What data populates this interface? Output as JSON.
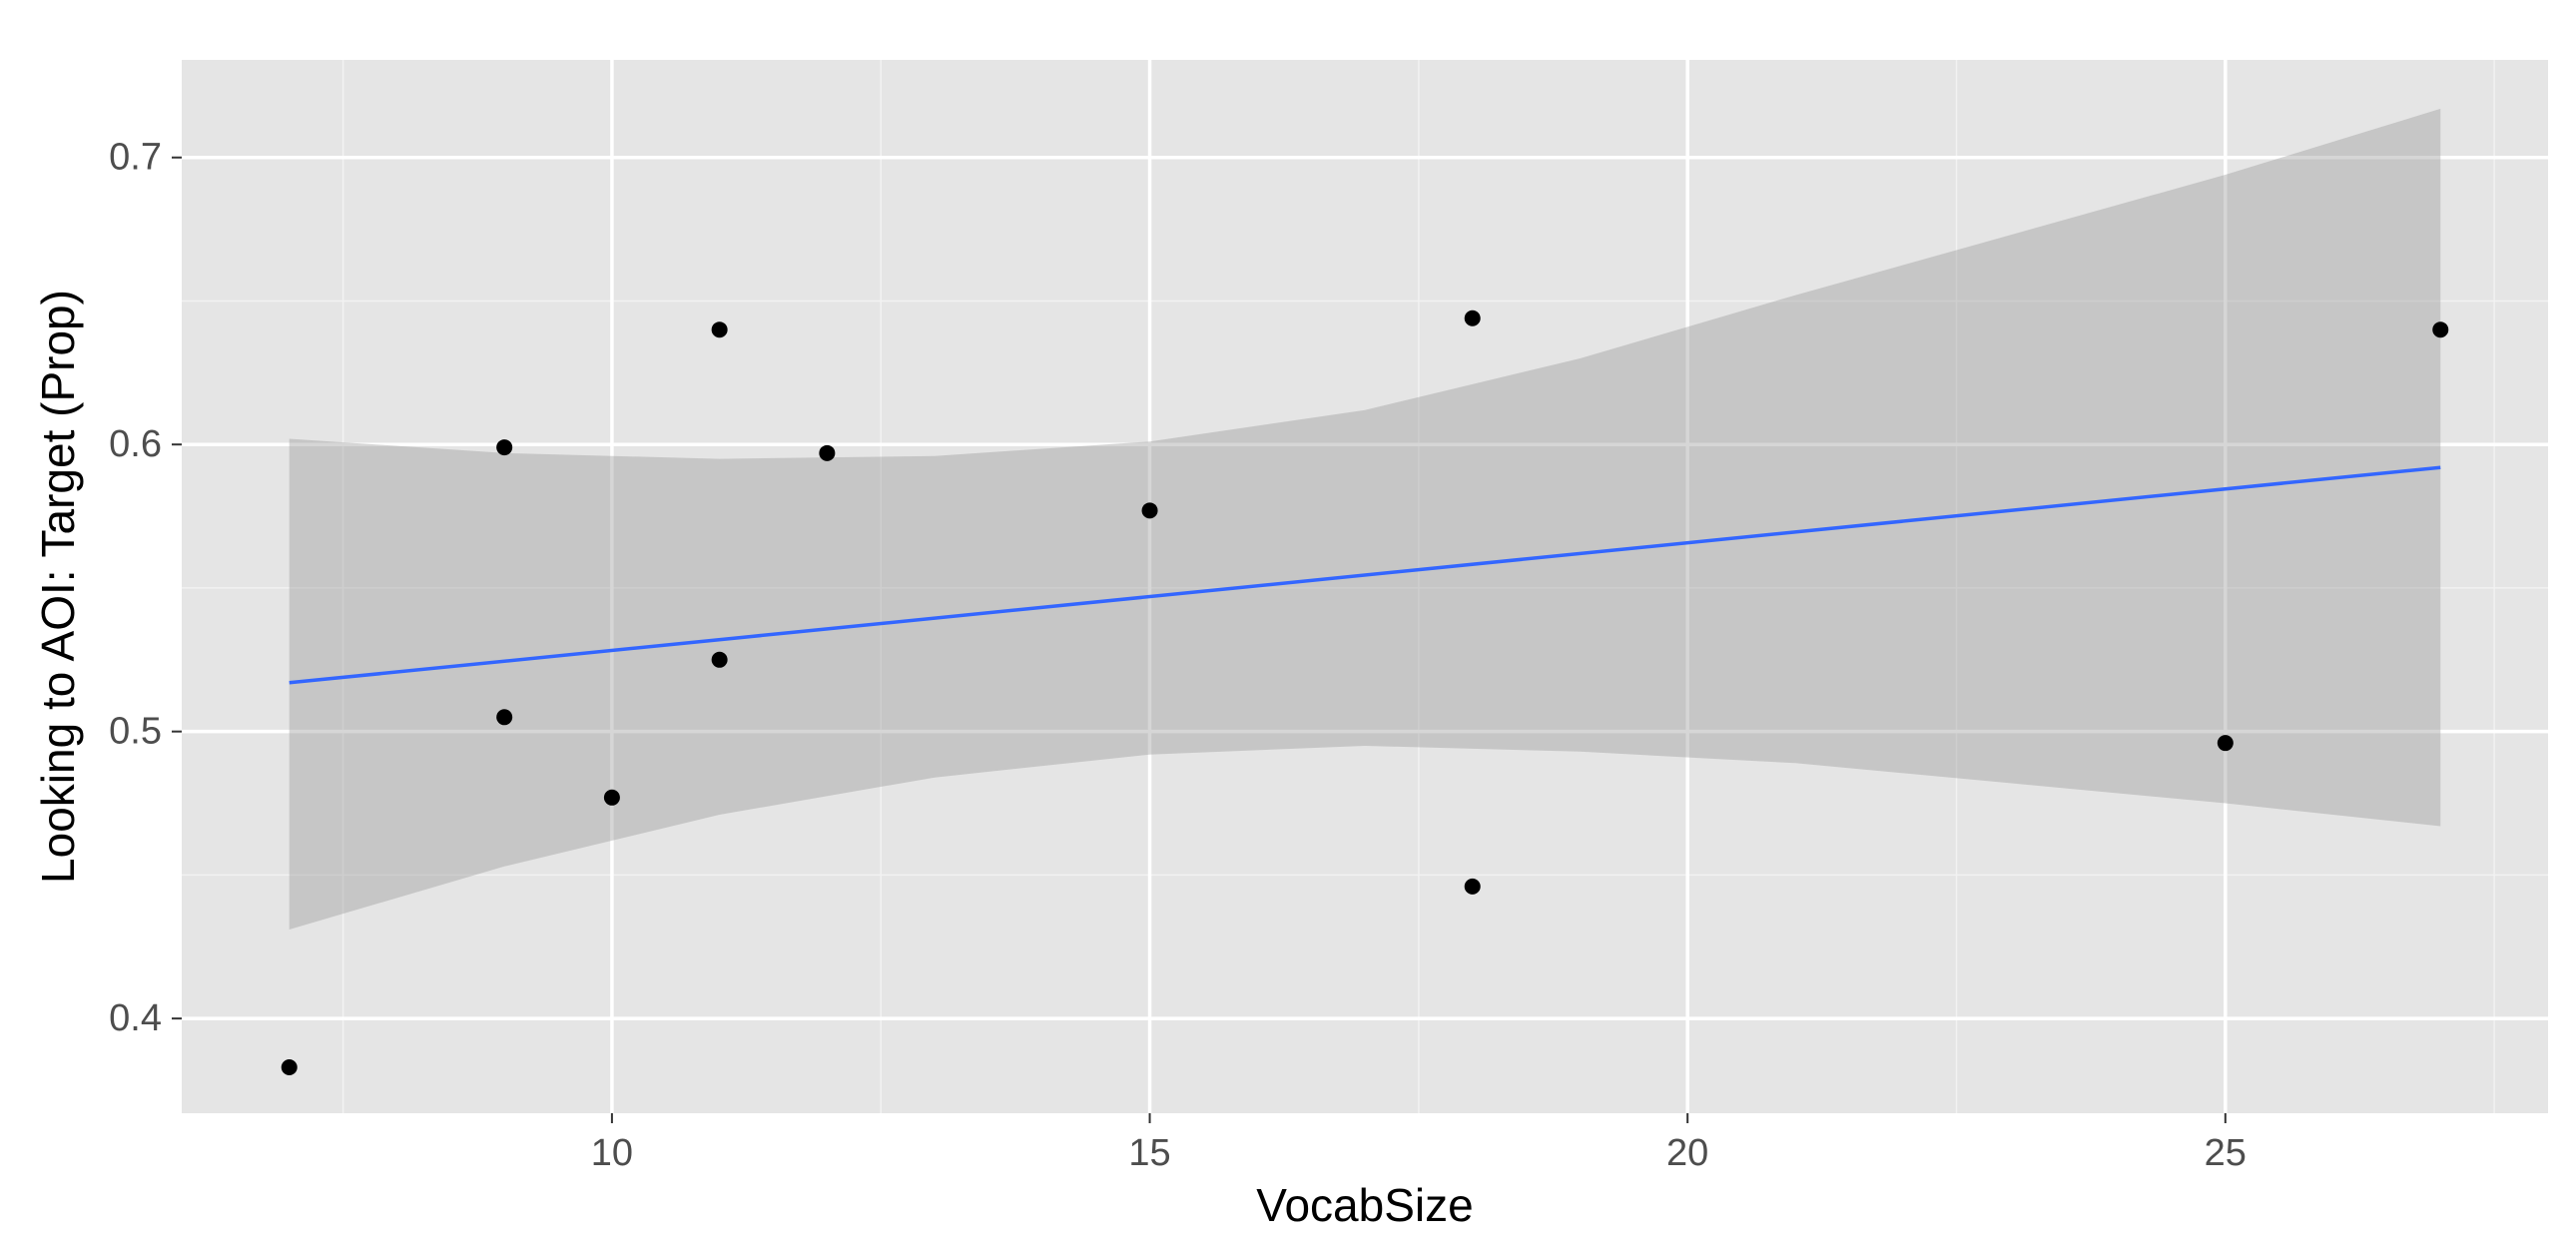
{
  "chart_data": {
    "type": "scatter",
    "title": "",
    "xlabel": "VocabSize",
    "ylabel": "Looking to AOI:  Target (Prop)",
    "xlim": [
      6.0,
      28.0
    ],
    "ylim": [
      0.367,
      0.734
    ],
    "x_ticks": [
      10,
      15,
      20,
      25
    ],
    "x_tick_labels": [
      "10",
      "15",
      "20",
      "25"
    ],
    "y_ticks": [
      0.4,
      0.5,
      0.6,
      0.7
    ],
    "y_tick_labels": [
      "0.4",
      "0.5",
      "0.6",
      "0.7"
    ],
    "x_minor_ticks": [
      7.5,
      12.5,
      17.5,
      22.5,
      27.5
    ],
    "y_minor_ticks": [
      0.45,
      0.55,
      0.65
    ],
    "grid": true,
    "legend": "none",
    "colors": {
      "panel_background": "#e5e5e5",
      "grid_major": "#ffffff",
      "grid_minor": "#f2f2f2",
      "points": "#000000",
      "trend_line": "#3366ff",
      "confidence_band": "#999999"
    },
    "series": [
      {
        "kind": "points",
        "x": [
          7,
          9,
          9,
          10,
          11,
          11,
          12,
          15,
          18,
          18,
          25,
          27
        ],
        "y": [
          0.383,
          0.599,
          0.505,
          0.477,
          0.64,
          0.525,
          0.597,
          0.577,
          0.644,
          0.446,
          0.496,
          0.64
        ]
      },
      {
        "kind": "trend-line",
        "method": "lm",
        "x": [
          7,
          27
        ],
        "y": [
          0.517,
          0.592
        ]
      },
      {
        "kind": "confidence-band",
        "x": [
          7,
          9,
          11,
          13,
          15,
          17,
          19,
          21,
          23,
          25,
          27
        ],
        "upper": [
          0.602,
          0.597,
          0.595,
          0.596,
          0.601,
          0.612,
          0.63,
          0.652,
          0.673,
          0.694,
          0.717
        ],
        "lower": [
          0.431,
          0.453,
          0.471,
          0.484,
          0.492,
          0.495,
          0.493,
          0.489,
          0.482,
          0.475,
          0.467
        ]
      }
    ]
  }
}
